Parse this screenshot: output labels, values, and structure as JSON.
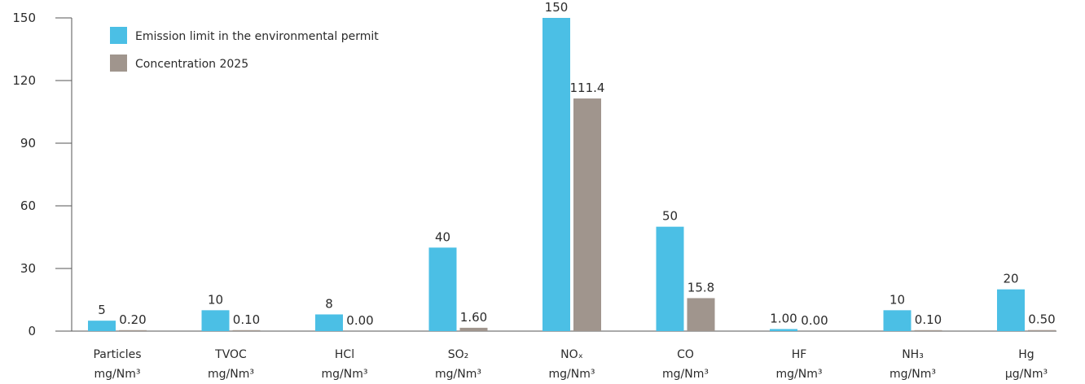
{
  "chart_data": {
    "type": "bar",
    "title": "",
    "xlabel": "",
    "ylabel": "",
    "ylim": [
      0,
      150
    ],
    "yticks": [
      "0",
      "30",
      "60",
      "90",
      "120",
      "150"
    ],
    "grid": false,
    "legend_position": "top-left",
    "categories": [
      {
        "name": "Particles",
        "unit": "mg/Nm³"
      },
      {
        "name": "TVOC",
        "unit": "mg/Nm³"
      },
      {
        "name": "HCl",
        "unit": "mg/Nm³"
      },
      {
        "name": "SO₂",
        "unit": "mg/Nm³"
      },
      {
        "name": "NOₓ",
        "unit": "mg/Nm³"
      },
      {
        "name": "CO",
        "unit": "mg/Nm³"
      },
      {
        "name": "HF",
        "unit": "mg/Nm³"
      },
      {
        "name": "NH₃",
        "unit": "mg/Nm³"
      },
      {
        "name": "Hg",
        "unit": "µg/Nm³"
      }
    ],
    "series": [
      {
        "name": "Emission limit in the environmental permit",
        "color": "#4bbfe5",
        "values": [
          5,
          10,
          8,
          40,
          150,
          50,
          1.0,
          10,
          20
        ],
        "labels": [
          "5",
          "10",
          "8",
          "40",
          "150",
          "50",
          "1.00",
          "10",
          "20"
        ]
      },
      {
        "name": "Concentration 2025",
        "color": "#a0958d",
        "values": [
          0.2,
          0.1,
          0.0,
          1.6,
          111.4,
          15.8,
          0.0,
          0.1,
          0.5
        ],
        "labels": [
          "0.20",
          "0.10",
          "0.00",
          "1.60",
          "111.4",
          "15.8",
          "0.00",
          "0.10",
          "0.50"
        ]
      }
    ]
  }
}
